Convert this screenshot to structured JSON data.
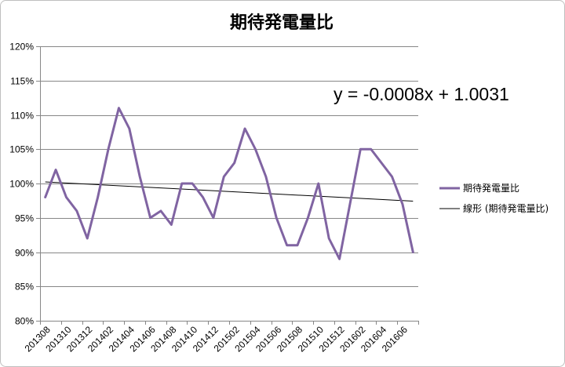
{
  "chart_data": {
    "type": "line",
    "title": "期待発電量比",
    "ylim": [
      80,
      120
    ],
    "y_tick_labels": [
      "120%",
      "115%",
      "110%",
      "105%",
      "100%",
      "95%",
      "90%",
      "85%",
      "80%"
    ],
    "x_tick_labels": [
      "201308",
      "201310",
      "201312",
      "201402",
      "201404",
      "201406",
      "201408",
      "201410",
      "201412",
      "201502",
      "201504",
      "201506",
      "201508",
      "201510",
      "201512",
      "201602",
      "201604",
      "201606"
    ],
    "x_tick_interval": 2,
    "series": [
      {
        "name": "期待発電量比",
        "values": [
          98,
          102,
          98,
          96,
          92,
          98,
          105,
          111,
          108,
          101,
          95,
          96,
          94,
          100,
          100,
          98,
          95,
          101,
          103,
          108,
          105,
          101,
          95,
          91,
          91,
          95,
          100,
          92,
          89,
          97,
          105,
          105,
          103,
          101,
          97,
          90
        ]
      }
    ],
    "trendline": {
      "name": "線形 (期待発電量比)",
      "type": "linear",
      "equation": "y = -0.0008x + 1.0031",
      "slope": -0.0008,
      "intercept": 1.0031
    },
    "grid": {
      "horizontal": true,
      "vertical": false
    },
    "legend_position": "right",
    "colors": {
      "series": "#8064A2",
      "trendline": "#000000",
      "grid": "#878787",
      "axis": "#878787",
      "border": "#BFBFBF"
    }
  }
}
